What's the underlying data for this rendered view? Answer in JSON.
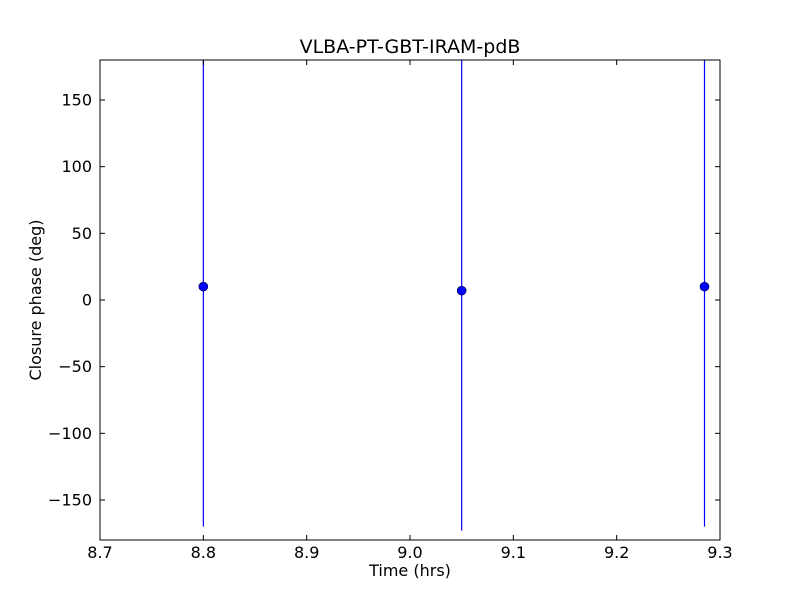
{
  "chart_data": {
    "type": "scatter",
    "title": "VLBA-PT-GBT-IRAM-pdB",
    "xlabel": "Time (hrs)",
    "ylabel": "Closure phase (deg)",
    "xlim": [
      8.7,
      9.3
    ],
    "ylim": [
      -180,
      180
    ],
    "xticks": [
      8.7,
      8.8,
      8.9,
      9.0,
      9.1,
      9.2,
      9.3
    ],
    "xtick_labels": [
      "8.7",
      "8.8",
      "8.9",
      "9.0",
      "9.1",
      "9.2",
      "9.3"
    ],
    "yticks": [
      150,
      100,
      50,
      0,
      -50,
      -100,
      -150
    ],
    "ytick_labels": [
      "150",
      "100",
      "50",
      "0",
      "−50",
      "−100",
      "−150"
    ],
    "grid": false,
    "series": [
      {
        "color": "#0000ff",
        "points": [
          {
            "x": 8.8,
            "y": 10,
            "yerr": 180
          },
          {
            "x": 9.05,
            "y": 7,
            "yerr": 180
          },
          {
            "x": 9.285,
            "y": 10,
            "yerr": 180
          }
        ]
      }
    ]
  }
}
